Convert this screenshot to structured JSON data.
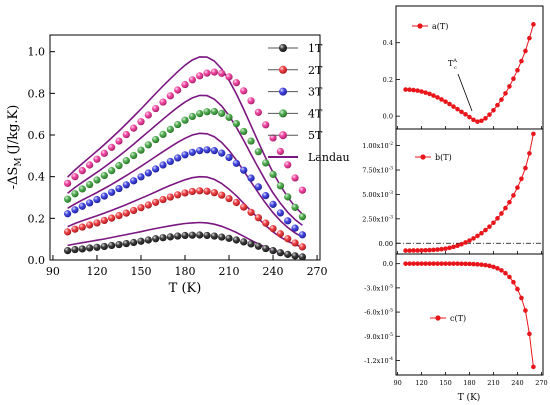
{
  "chart_data": [
    {
      "type": "scatter",
      "xlabel": "T (K)",
      "ylabel": "-ΔS",
      "ylabel_sub": "M",
      "ylabel_unit": "(J/kg.K)",
      "xlim": [
        88,
        272
      ],
      "ylim": [
        0,
        1.08
      ],
      "xticks": [
        "90",
        "120",
        "150",
        "180",
        "210",
        "240",
        "270"
      ],
      "yticks": [
        "0.0",
        "0.2",
        "0.4",
        "0.6",
        "0.8",
        "1.0"
      ],
      "x": [
        100,
        105,
        110,
        115,
        120,
        125,
        130,
        135,
        140,
        145,
        150,
        155,
        160,
        165,
        170,
        175,
        180,
        185,
        190,
        195,
        200,
        205,
        210,
        215,
        220,
        225,
        230,
        235,
        240,
        245,
        250,
        255,
        260
      ],
      "series": [
        {
          "name": "1T",
          "color": "#111111",
          "values": [
            0.045,
            0.05,
            0.053,
            0.058,
            0.061,
            0.065,
            0.07,
            0.074,
            0.079,
            0.084,
            0.09,
            0.096,
            0.102,
            0.107,
            0.111,
            0.115,
            0.118,
            0.119,
            0.12,
            0.118,
            0.115,
            0.11,
            0.104,
            0.096,
            0.087,
            0.077,
            0.066,
            0.055,
            0.045,
            0.035,
            0.027,
            0.02,
            0.015
          ]
        },
        {
          "name": "2T",
          "color": "#e8151b",
          "values": [
            0.135,
            0.148,
            0.158,
            0.168,
            0.178,
            0.19,
            0.201,
            0.213,
            0.225,
            0.238,
            0.251,
            0.264,
            0.277,
            0.29,
            0.302,
            0.313,
            0.322,
            0.329,
            0.332,
            0.33,
            0.323,
            0.311,
            0.295,
            0.276,
            0.254,
            0.229,
            0.203,
            0.177,
            0.151,
            0.126,
            0.102,
            0.082,
            0.063
          ]
        },
        {
          "name": "3T",
          "color": "#1b1fd6",
          "values": [
            0.222,
            0.241,
            0.258,
            0.274,
            0.29,
            0.307,
            0.325,
            0.343,
            0.361,
            0.38,
            0.399,
            0.418,
            0.437,
            0.456,
            0.473,
            0.49,
            0.505,
            0.517,
            0.525,
            0.529,
            0.525,
            0.513,
            0.492,
            0.464,
            0.431,
            0.393,
            0.351,
            0.309,
            0.267,
            0.226,
            0.188,
            0.153,
            0.121
          ]
        },
        {
          "name": "4T",
          "color": "#2b9a2b",
          "values": [
            0.292,
            0.318,
            0.341,
            0.362,
            0.384,
            0.406,
            0.429,
            0.453,
            0.477,
            0.502,
            0.527,
            0.553,
            0.578,
            0.603,
            0.627,
            0.65,
            0.671,
            0.689,
            0.703,
            0.712,
            0.713,
            0.704,
            0.685,
            0.655,
            0.617,
            0.571,
            0.52,
            0.466,
            0.411,
            0.356,
            0.303,
            0.253,
            0.208
          ]
        },
        {
          "name": "5T",
          "color": "#ec1f8d",
          "values": [
            0.368,
            0.4,
            0.429,
            0.456,
            0.484,
            0.512,
            0.541,
            0.571,
            0.602,
            0.633,
            0.664,
            0.696,
            0.727,
            0.758,
            0.788,
            0.816,
            0.842,
            0.865,
            0.884,
            0.897,
            0.902,
            0.896,
            0.879,
            0.851,
            0.812,
            0.764,
            0.709,
            0.649,
            0.586,
            0.521,
            0.457,
            0.394,
            0.335
          ]
        }
      ],
      "fit_series": [
        {
          "field": "1T",
          "values": [
            0.07,
            0.077,
            0.083,
            0.089,
            0.095,
            0.101,
            0.108,
            0.115,
            0.122,
            0.129,
            0.136,
            0.144,
            0.151,
            0.158,
            0.164,
            0.17,
            0.175,
            0.178,
            0.18,
            0.178,
            0.172,
            0.162,
            0.148,
            0.132,
            0.114,
            0.095,
            0.077,
            0.061,
            0.047,
            0.036,
            0.027,
            0.02,
            0.015
          ]
        },
        {
          "field": "2T",
          "values": [
            0.16,
            0.175,
            0.188,
            0.2,
            0.212,
            0.225,
            0.238,
            0.252,
            0.266,
            0.281,
            0.296,
            0.311,
            0.327,
            0.343,
            0.358,
            0.372,
            0.385,
            0.395,
            0.4,
            0.398,
            0.387,
            0.367,
            0.34,
            0.308,
            0.272,
            0.235,
            0.199,
            0.165,
            0.135,
            0.11,
            0.09,
            0.074,
            0.062
          ]
        },
        {
          "field": "3T",
          "values": [
            0.248,
            0.269,
            0.288,
            0.306,
            0.324,
            0.343,
            0.363,
            0.384,
            0.405,
            0.427,
            0.45,
            0.473,
            0.497,
            0.52,
            0.543,
            0.565,
            0.584,
            0.6,
            0.608,
            0.606,
            0.592,
            0.564,
            0.526,
            0.479,
            0.428,
            0.375,
            0.322,
            0.272,
            0.227,
            0.188,
            0.156,
            0.13,
            0.11
          ]
        },
        {
          "field": "4T",
          "values": [
            0.32,
            0.348,
            0.373,
            0.397,
            0.421,
            0.446,
            0.472,
            0.499,
            0.527,
            0.556,
            0.586,
            0.616,
            0.646,
            0.676,
            0.705,
            0.733,
            0.758,
            0.778,
            0.79,
            0.789,
            0.772,
            0.739,
            0.693,
            0.637,
            0.574,
            0.508,
            0.442,
            0.38,
            0.322,
            0.272,
            0.229,
            0.194,
            0.167
          ]
        },
        {
          "field": "5T",
          "values": [
            0.398,
            0.432,
            0.463,
            0.493,
            0.523,
            0.554,
            0.586,
            0.619,
            0.654,
            0.689,
            0.725,
            0.762,
            0.799,
            0.835,
            0.87,
            0.904,
            0.935,
            0.96,
            0.975,
            0.974,
            0.955,
            0.917,
            0.863,
            0.797,
            0.723,
            0.645,
            0.566,
            0.49,
            0.42,
            0.357,
            0.302,
            0.256,
            0.22
          ]
        }
      ],
      "legend": {
        "placement": "top-right",
        "entries": [
          "1T",
          "2T",
          "3T",
          "4T",
          "5T",
          "Landau"
        ],
        "line_color": "#7b1780"
      }
    },
    {
      "type": "line",
      "legend": "a(T)",
      "annotation": "T",
      "annotation_sup": "A",
      "annotation_sub": "c",
      "ylim": [
        -0.07,
        0.6
      ],
      "yticks": [
        "0.0",
        "0.2",
        "0.4"
      ],
      "color": "#e8151b",
      "x": [
        100,
        105,
        110,
        115,
        120,
        125,
        130,
        135,
        140,
        145,
        150,
        155,
        160,
        165,
        170,
        175,
        180,
        185,
        190,
        195,
        200,
        205,
        210,
        215,
        220,
        225,
        230,
        235,
        240,
        245,
        250,
        255,
        260
      ],
      "values": [
        0.145,
        0.144,
        0.142,
        0.139,
        0.134,
        0.128,
        0.121,
        0.112,
        0.102,
        0.091,
        0.079,
        0.066,
        0.052,
        0.038,
        0.023,
        0.01,
        -0.005,
        -0.02,
        -0.03,
        -0.025,
        -0.012,
        0.008,
        0.032,
        0.06,
        0.09,
        0.124,
        0.162,
        0.204,
        0.25,
        0.3,
        0.355,
        0.425,
        0.5
      ]
    },
    {
      "type": "line",
      "legend": "b(T)",
      "ylim": [
        -0.0011,
        0.0117
      ],
      "yticks": [
        "0.00",
        "2.50x10",
        "5.00x10",
        "7.50x10",
        "1.00x10"
      ],
      "ytick_exponents": [
        "",
        "-3",
        "-3",
        "-3",
        "-2"
      ],
      "reference_line": 0,
      "color": "#e8151b",
      "x": [
        100,
        105,
        110,
        115,
        120,
        125,
        130,
        135,
        140,
        145,
        150,
        155,
        160,
        165,
        170,
        175,
        180,
        185,
        190,
        195,
        200,
        205,
        210,
        215,
        220,
        225,
        230,
        235,
        240,
        245,
        250,
        255,
        260
      ],
      "values": [
        -0.00075,
        -0.00075,
        -0.00074,
        -0.00074,
        -0.00073,
        -0.00072,
        -0.0007,
        -0.00068,
        -0.00065,
        -0.00061,
        -0.00055,
        -0.00047,
        -0.00037,
        -0.00025,
        -0.0001,
        8e-05,
        0.00028,
        0.0005,
        0.00075,
        0.00103,
        0.00135,
        0.0017,
        0.0021,
        0.00255,
        0.00305,
        0.0036,
        0.0042,
        0.0049,
        0.0057,
        0.0066,
        0.0077,
        0.0092,
        0.0112
      ]
    },
    {
      "type": "line",
      "legend": "c(T)",
      "xlim": [
        88,
        272
      ],
      "xticks": [
        "90",
        "120",
        "150",
        "180",
        "210",
        "240",
        "270"
      ],
      "xlabel": "T (K)",
      "ylim": [
        -0.000138,
        1.2e-05
      ],
      "yticks": [
        "0.0",
        "-3.0x10",
        "-6.0x10",
        "-9.0x10",
        "-1.2x10"
      ],
      "ytick_exponents": [
        "",
        "-5",
        "-5",
        "-5",
        "-4"
      ],
      "color": "#e8151b",
      "x": [
        100,
        105,
        110,
        115,
        120,
        125,
        130,
        135,
        140,
        145,
        150,
        155,
        160,
        165,
        170,
        175,
        180,
        185,
        190,
        195,
        200,
        205,
        210,
        215,
        220,
        225,
        230,
        235,
        240,
        245,
        250,
        255,
        260
      ],
      "values": [
        0,
        0,
        0,
        0,
        0,
        0,
        0,
        0,
        0,
        0,
        0,
        0,
        0,
        0,
        -1e-07,
        -2e-07,
        -3e-07,
        -5e-07,
        -8e-07,
        -1.2e-06,
        -1.8e-06,
        -2.7e-06,
        -4e-06,
        -5.8e-06,
        -8.3e-06,
        -1.18e-05,
        -1.65e-05,
        -2.3e-05,
        -3.15e-05,
        -4.25e-05,
        -5.8e-05,
        -8.7e-05,
        -0.000128
      ]
    }
  ]
}
